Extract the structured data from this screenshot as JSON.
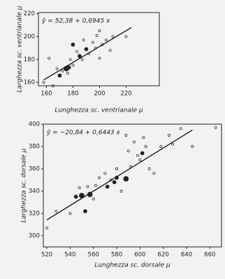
{
  "chart_data": [
    {
      "type": "scatter",
      "equation": "ŷ = 52,38 + 0,6945 x",
      "x_label": "Lunghezza sc. ventrianale μ",
      "y_label": "Larghezza sc. ventrianale μ",
      "xlim": [
        154,
        245
      ],
      "ylim": [
        157,
        221
      ],
      "xticks": [
        160,
        180,
        200,
        220
      ],
      "yticks": [
        160,
        180,
        200,
        220
      ],
      "fit": {
        "x": [
          158,
          224
        ],
        "intercept": 52.38,
        "slope": 0.6945
      },
      "x": [
        158,
        162,
        165,
        168,
        170,
        172,
        175,
        176,
        177,
        178,
        180,
        180,
        183,
        185,
        187,
        188,
        190,
        192,
        195,
        197,
        198,
        200,
        200,
        202,
        205,
        208,
        210,
        220
      ],
      "values": [
        160,
        181,
        157,
        172,
        166,
        170,
        172,
        168,
        173,
        180,
        175,
        193,
        187,
        183,
        180,
        197,
        189,
        185,
        195,
        190,
        201,
        205,
        181,
        193,
        197,
        188,
        200,
        200
      ],
      "sizes": [
        1,
        1,
        1,
        1,
        2,
        1,
        3,
        1,
        2,
        1,
        1,
        2,
        1,
        2,
        1,
        1,
        2,
        1,
        1,
        1,
        1,
        1,
        1,
        1,
        1,
        1,
        1,
        1
      ]
    },
    {
      "type": "scatter",
      "equation": "ŷ = −20,84 + 0,6443 x",
      "x_label": "Lunghezza sc. dorsale μ",
      "y_label": "Larghezza sc. dorsale μ",
      "xlim": [
        517,
        670
      ],
      "ylim": [
        290,
        400
      ],
      "xticks": [
        520,
        540,
        560,
        580,
        600,
        620,
        640,
        660
      ],
      "yticks": [
        300,
        320,
        340,
        360,
        380,
        400
      ],
      "fit": {
        "x": [
          520,
          645
        ],
        "intercept": -20.84,
        "slope": 0.6443
      },
      "x": [
        520,
        528,
        540,
        545,
        548,
        550,
        553,
        555,
        557,
        560,
        562,
        565,
        570,
        572,
        575,
        578,
        580,
        580,
        584,
        588,
        588,
        590,
        592,
        595,
        598,
        600,
        602,
        603,
        605,
        608,
        612,
        618,
        625,
        628,
        635,
        645,
        665
      ],
      "values": [
        307,
        322,
        320,
        335,
        343,
        336,
        322,
        344,
        337,
        333,
        345,
        352,
        356,
        344,
        350,
        348,
        352,
        360,
        340,
        351,
        390,
        376,
        362,
        384,
        372,
        368,
        374,
        388,
        380,
        360,
        356,
        380,
        390,
        382,
        396,
        380,
        397
      ],
      "sizes": [
        1,
        1,
        1,
        2,
        1,
        3,
        2,
        1,
        3,
        1,
        1,
        1,
        1,
        2,
        1,
        2,
        2,
        1,
        1,
        3,
        1,
        1,
        1,
        1,
        1,
        1,
        2,
        1,
        1,
        1,
        1,
        1,
        1,
        1,
        1,
        1,
        1
      ]
    }
  ]
}
